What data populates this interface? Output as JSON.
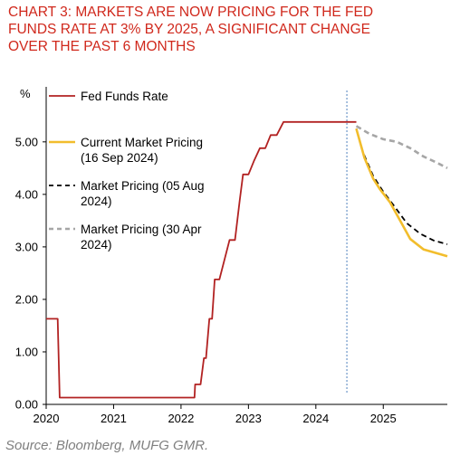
{
  "title_lines": [
    "CHART 3: MARKETS ARE NOW PRICING FOR THE FED",
    "FUNDS RATE AT 3% BY 2025, A SIGNIFICANT CHANGE",
    "OVER THE PAST 6 MONTHS"
  ],
  "source": "Source: Bloomberg, MUFG GMR.",
  "colors": {
    "title": "#d0281c",
    "fed_funds": "#b22222",
    "current": "#f2bd2c",
    "aug": "#000000",
    "apr": "#a6a6a6",
    "marker": "#4f81bd"
  },
  "chart_data": {
    "type": "line",
    "ylabel": "%",
    "xlim": [
      2020.0,
      2025.95
    ],
    "ylim": [
      0,
      5.6
    ],
    "x_ticks": [
      "2020",
      "2021",
      "2022",
      "2023",
      "2024",
      "2025"
    ],
    "y_ticks": [
      "0.00",
      "1.00",
      "2.00",
      "3.00",
      "4.00",
      "5.00"
    ],
    "grid": false,
    "legend_position": "top-left",
    "vertical_marker": 2024.46,
    "series": [
      {
        "name": "Fed Funds Rate",
        "key": "fed_funds",
        "style": "solid",
        "points": [
          [
            2020.0,
            1.63
          ],
          [
            2020.17,
            1.63
          ],
          [
            2020.2,
            0.13
          ],
          [
            2022.2,
            0.13
          ],
          [
            2022.21,
            0.38
          ],
          [
            2022.29,
            0.38
          ],
          [
            2022.34,
            0.88
          ],
          [
            2022.37,
            0.88
          ],
          [
            2022.42,
            1.63
          ],
          [
            2022.46,
            1.63
          ],
          [
            2022.5,
            2.38
          ],
          [
            2022.57,
            2.38
          ],
          [
            2022.72,
            3.13
          ],
          [
            2022.8,
            3.13
          ],
          [
            2022.87,
            3.88
          ],
          [
            2022.92,
            4.38
          ],
          [
            2023.0,
            4.38
          ],
          [
            2023.08,
            4.63
          ],
          [
            2023.17,
            4.88
          ],
          [
            2023.25,
            4.88
          ],
          [
            2023.33,
            5.13
          ],
          [
            2023.42,
            5.13
          ],
          [
            2023.52,
            5.38
          ],
          [
            2024.6,
            5.38
          ]
        ]
      },
      {
        "name": "Current Market Pricing (16 Sep 2024)",
        "key": "current",
        "style": "solid",
        "points": [
          [
            2024.6,
            5.25
          ],
          [
            2024.72,
            4.7
          ],
          [
            2024.85,
            4.3
          ],
          [
            2024.95,
            4.1
          ],
          [
            2025.1,
            3.85
          ],
          [
            2025.25,
            3.5
          ],
          [
            2025.4,
            3.15
          ],
          [
            2025.6,
            2.95
          ],
          [
            2025.95,
            2.82
          ]
        ]
      },
      {
        "name": "Market Pricing (05 Aug 2024)",
        "key": "aug",
        "style": "dashed",
        "points": [
          [
            2024.6,
            5.25
          ],
          [
            2024.7,
            4.8
          ],
          [
            2024.85,
            4.35
          ],
          [
            2025.0,
            4.05
          ],
          [
            2025.15,
            3.8
          ],
          [
            2025.35,
            3.45
          ],
          [
            2025.55,
            3.25
          ],
          [
            2025.75,
            3.12
          ],
          [
            2025.95,
            3.05
          ]
        ]
      },
      {
        "name": "Market Pricing (30 Apr 2024)",
        "key": "apr",
        "style": "dashed",
        "points": [
          [
            2024.6,
            5.3
          ],
          [
            2024.8,
            5.15
          ],
          [
            2025.0,
            5.05
          ],
          [
            2025.2,
            5.0
          ],
          [
            2025.4,
            4.88
          ],
          [
            2025.6,
            4.72
          ],
          [
            2025.8,
            4.6
          ],
          [
            2025.95,
            4.5
          ]
        ]
      }
    ],
    "legend": [
      {
        "key": "fed_funds",
        "lines": [
          "Fed Funds Rate"
        ]
      },
      {
        "key": "current",
        "lines": [
          "Current Market Pricing",
          "(16 Sep 2024)"
        ]
      },
      {
        "key": "aug",
        "lines": [
          "Market Pricing (05 Aug",
          "2024)"
        ]
      },
      {
        "key": "apr",
        "lines": [
          "Market Pricing (30 Apr",
          "2024)"
        ]
      }
    ]
  }
}
